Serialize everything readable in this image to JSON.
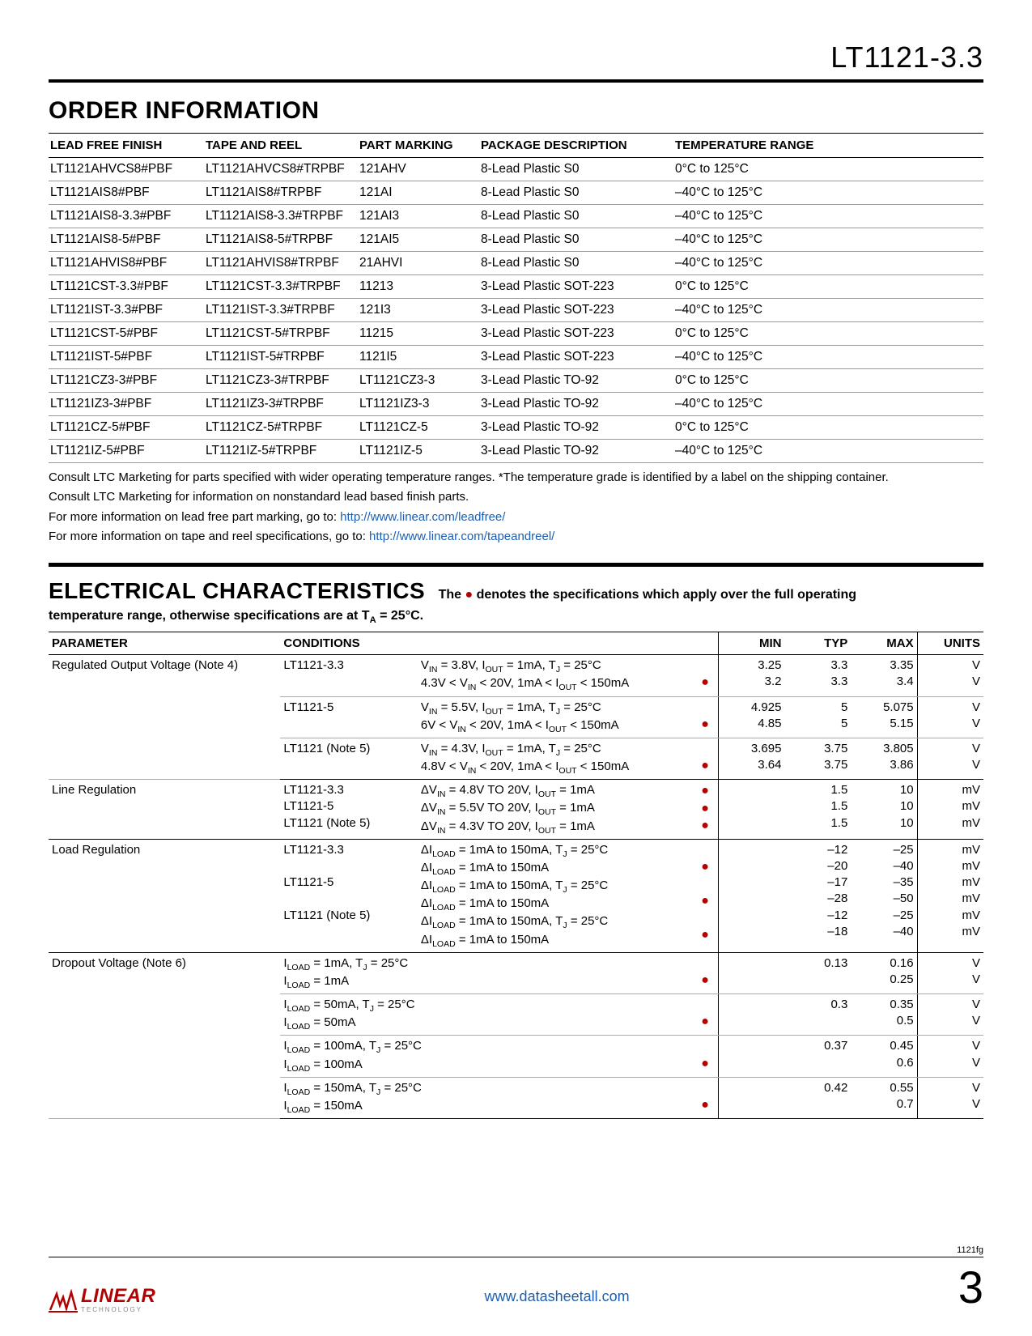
{
  "header": {
    "title": "LT1121-3.3"
  },
  "section1": {
    "title": "ORDER INFORMATION"
  },
  "orderTable": {
    "cols": [
      "LEAD FREE FINISH",
      "TAPE AND REEL",
      "PART MARKING",
      "PACKAGE DESCRIPTION",
      "TEMPERATURE RANGE"
    ],
    "rows": [
      [
        "LT1121AHVCS8#PBF",
        "LT1121AHVCS8#TRPBF",
        "121AHV",
        "8-Lead Plastic S0",
        "0°C to 125°C"
      ],
      [
        "LT1121AIS8#PBF",
        "LT1121AIS8#TRPBF",
        "121AI",
        "8-Lead Plastic S0",
        "–40°C to 125°C"
      ],
      [
        "LT1121AIS8-3.3#PBF",
        "LT1121AIS8-3.3#TRPBF",
        "121AI3",
        "8-Lead Plastic S0",
        "–40°C to 125°C"
      ],
      [
        "LT1121AIS8-5#PBF",
        "LT1121AIS8-5#TRPBF",
        "121AI5",
        "8-Lead Plastic S0",
        "–40°C to 125°C"
      ],
      [
        "LT1121AHVIS8#PBF",
        "LT1121AHVIS8#TRPBF",
        "21AHVI",
        "8-Lead Plastic S0",
        "–40°C to 125°C"
      ],
      [
        "LT1121CST-3.3#PBF",
        "LT1121CST-3.3#TRPBF",
        "11213",
        "3-Lead Plastic SOT-223",
        "0°C to 125°C"
      ],
      [
        "LT1121IST-3.3#PBF",
        "LT1121IST-3.3#TRPBF",
        "121I3",
        "3-Lead Plastic SOT-223",
        "–40°C to 125°C"
      ],
      [
        "LT1121CST-5#PBF",
        "LT1121CST-5#TRPBF",
        "11215",
        "3-Lead Plastic SOT-223",
        "0°C to 125°C"
      ],
      [
        "LT1121IST-5#PBF",
        "LT1121IST-5#TRPBF",
        "1121I5",
        "3-Lead Plastic SOT-223",
        "–40°C to 125°C"
      ],
      [
        "LT1121CZ3-3#PBF",
        "LT1121CZ3-3#TRPBF",
        "LT1121CZ3-3",
        "3-Lead Plastic TO-92",
        "0°C to 125°C"
      ],
      [
        "LT1121IZ3-3#PBF",
        "LT1121IZ3-3#TRPBF",
        "LT1121IZ3-3",
        "3-Lead Plastic TO-92",
        "–40°C to 125°C"
      ],
      [
        "LT1121CZ-5#PBF",
        "LT1121CZ-5#TRPBF",
        "LT1121CZ-5",
        "3-Lead Plastic TO-92",
        "0°C to 125°C"
      ],
      [
        "LT1121IZ-5#PBF",
        "LT1121IZ-5#TRPBF",
        "LT1121IZ-5",
        "3-Lead Plastic TO-92",
        "–40°C to 125°C"
      ]
    ],
    "widths": [
      "190px",
      "190px",
      "150px",
      "240px",
      ""
    ]
  },
  "notes": {
    "l1": "Consult LTC Marketing for parts specified with wider operating temperature ranges. *The temperature grade is identified by a label on the shipping container.",
    "l2": "Consult LTC Marketing for information on nonstandard lead based finish parts.",
    "l3a": "For more information on lead free part marking, go to: ",
    "l3b": "http://www.linear.com/leadfree/",
    "l4a": "For more information on tape and reel specifications, go to: ",
    "l4b": "http://www.linear.com/tapeandreel/"
  },
  "section2": {
    "title": "ELECTRICAL CHARACTERISTICS",
    "sub1_a": "The ",
    "sub1_b": " denotes the specifications which apply over the full operating",
    "sub2_a": "temperature range, otherwise specifications are at T",
    "sub2_b": " = 25°C."
  },
  "elecCols": [
    "PARAMETER",
    "CONDITIONS",
    "",
    "",
    "MIN",
    "TYP",
    "MAX",
    "UNITS"
  ],
  "footer": {
    "rev": "1121fg",
    "page": "3",
    "url": "www.datasheetall.com",
    "logo": "LINEAR",
    "logosub": "TECHNOLOGY"
  }
}
